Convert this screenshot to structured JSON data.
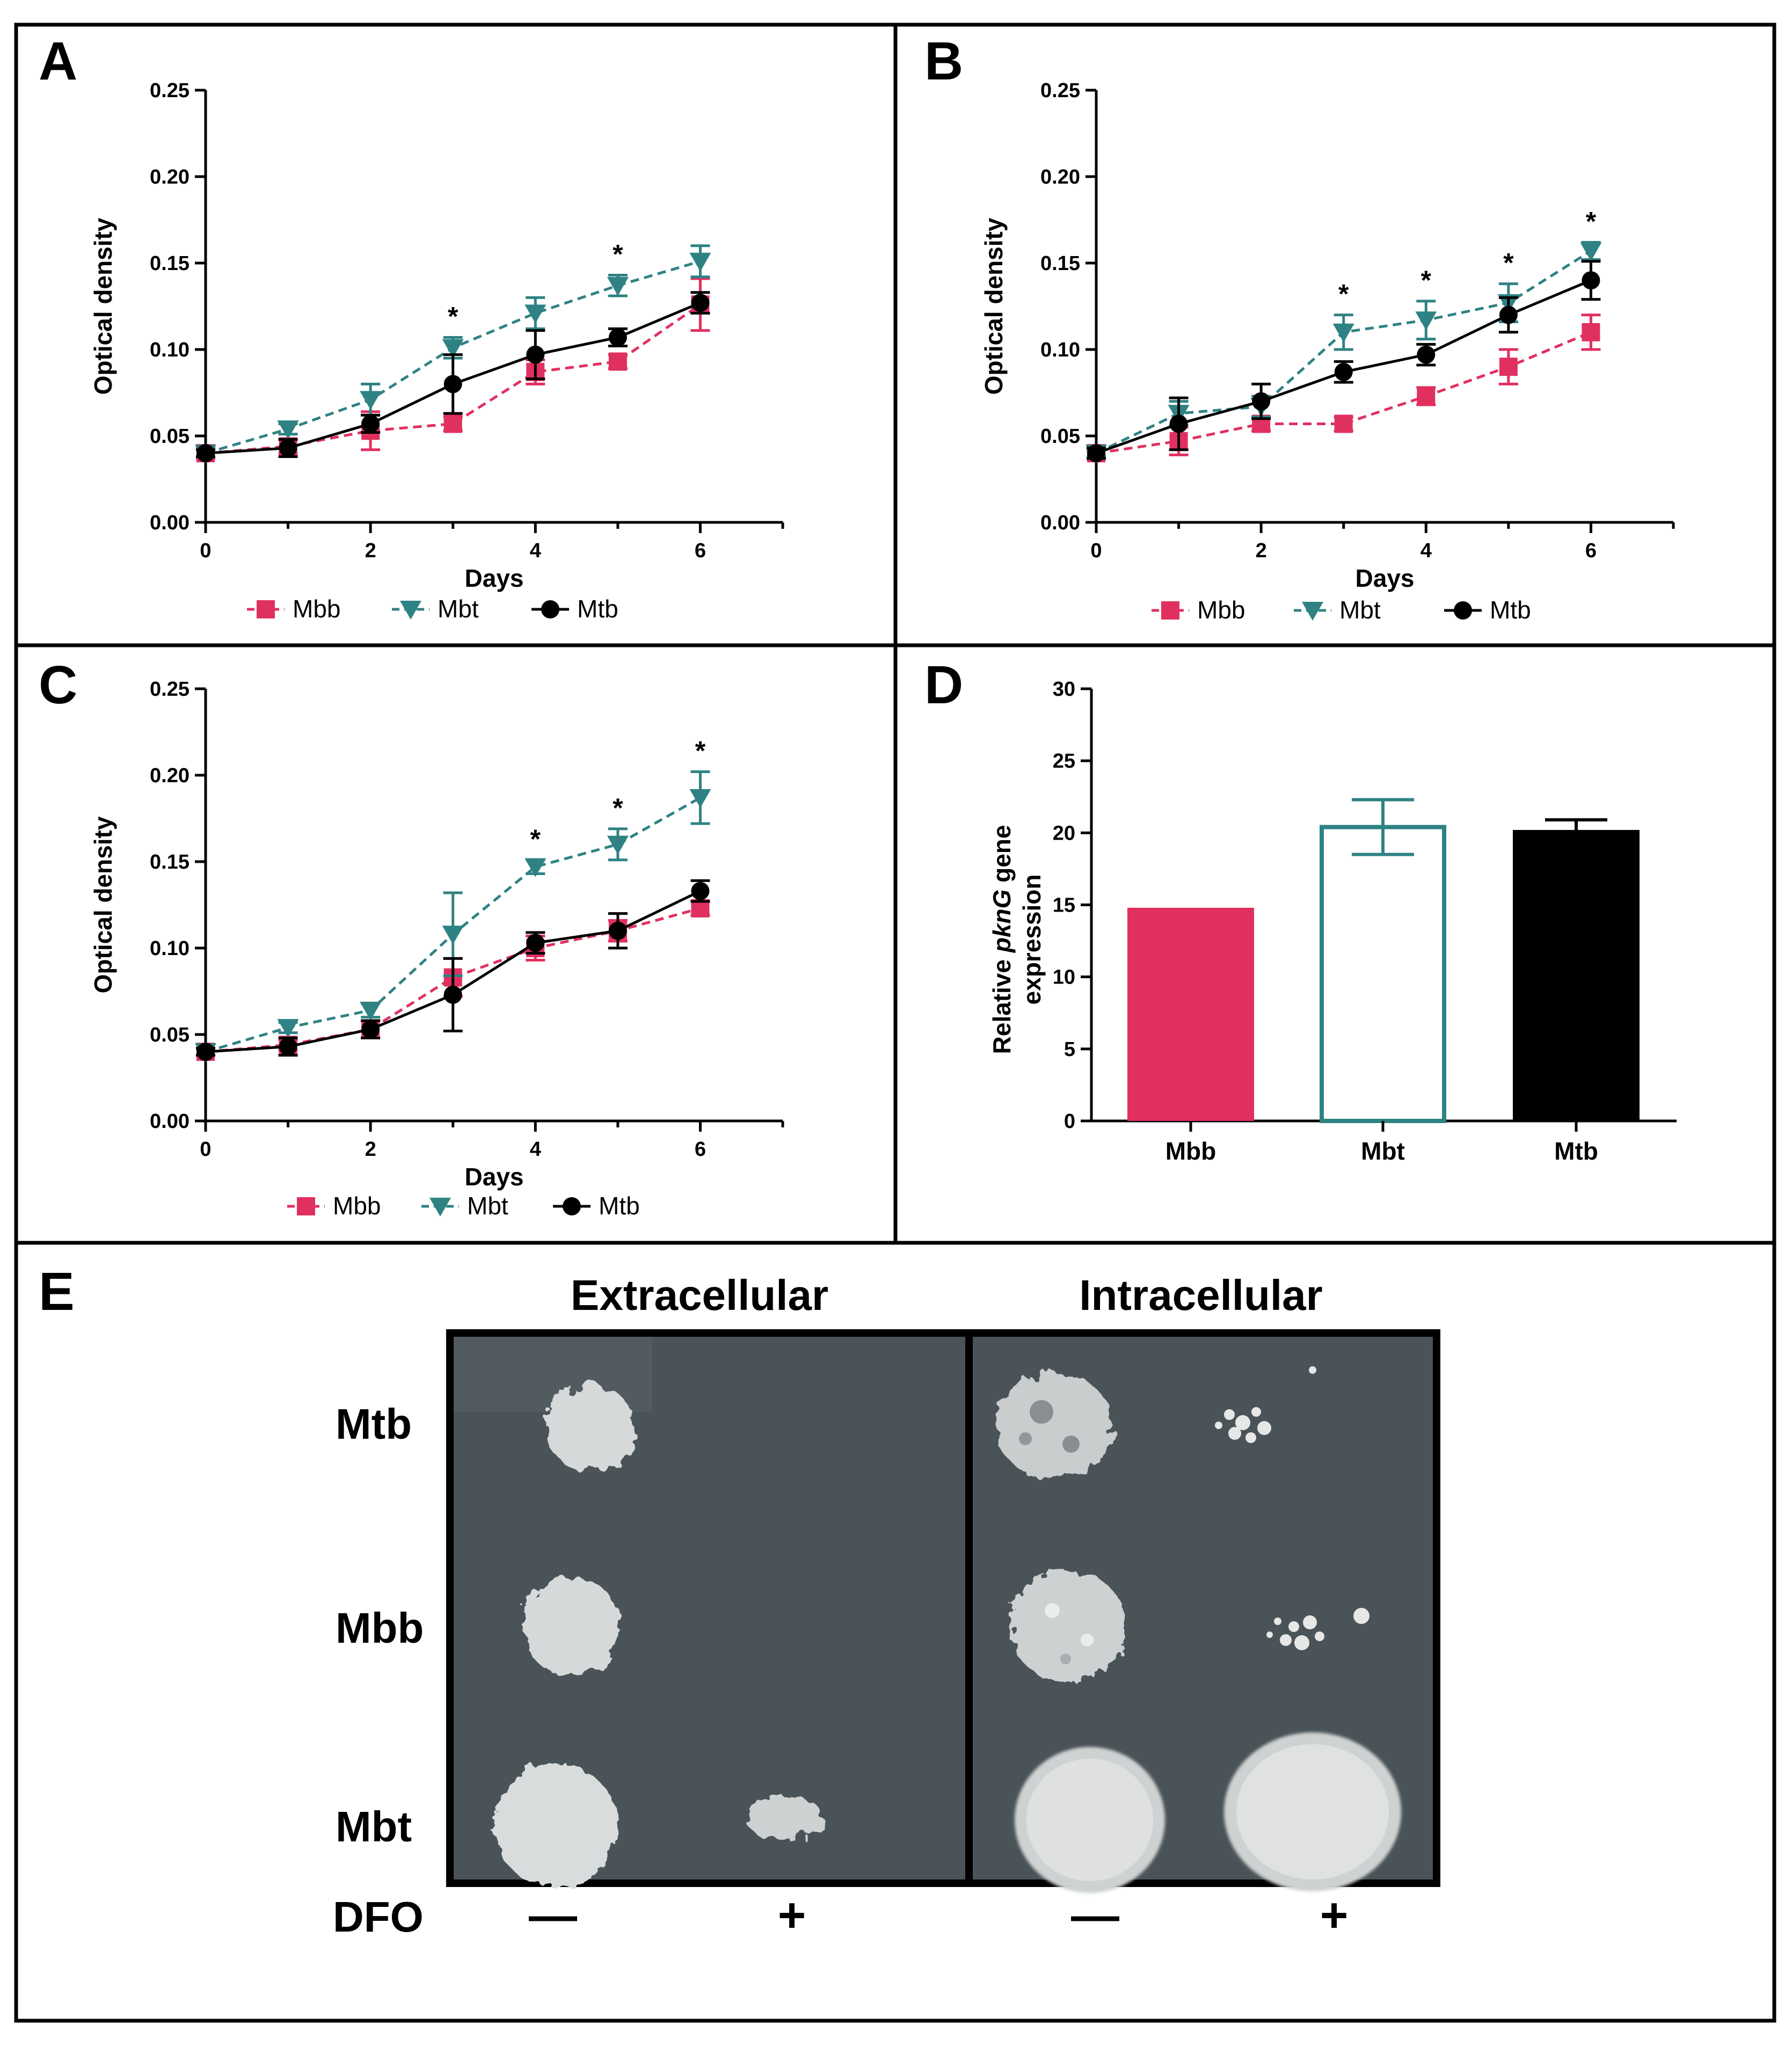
{
  "colors": {
    "Mbb": "#e0305f",
    "Mbt": "#2f8283",
    "Mtb": "#000000",
    "plate_bg": "#4a5358",
    "colony": "#d9dcdc"
  },
  "chart_data": [
    {
      "panel": "A",
      "type": "line",
      "xlabel": "Days",
      "ylabel": "Optical density",
      "xlim": [
        0,
        7
      ],
      "ylim": [
        0,
        0.25
      ],
      "xticks": [
        "0",
        "2",
        "4",
        "6"
      ],
      "yticks": [
        "0.00",
        "0.05",
        "0.10",
        "0.15",
        "0.20",
        "0.25"
      ],
      "x": [
        0,
        1,
        2,
        3,
        4,
        5,
        6
      ],
      "legend": "bottom",
      "series": [
        {
          "name": "Mbb",
          "marker": "square",
          "style": "dashed",
          "values": [
            0.04,
            0.044,
            0.053,
            0.057,
            0.087,
            0.093,
            0.126
          ],
          "errors": [
            0.003,
            0.004,
            0.011,
            0.004,
            0.007,
            0.004,
            0.015
          ]
        },
        {
          "name": "Mbt",
          "marker": "triangle-down",
          "style": "dashed",
          "values": [
            0.04,
            0.054,
            0.071,
            0.101,
            0.121,
            0.137,
            0.151
          ],
          "errors": [
            0.002,
            0.003,
            0.009,
            0.006,
            0.009,
            0.006,
            0.009
          ]
        },
        {
          "name": "Mtb",
          "marker": "circle",
          "style": "solid",
          "values": [
            0.04,
            0.043,
            0.057,
            0.08,
            0.097,
            0.107,
            0.127
          ],
          "errors": [
            0.002,
            0.005,
            0.005,
            0.017,
            0.014,
            0.005,
            0.006
          ]
        }
      ],
      "significance_x": [
        3,
        5
      ],
      "significance_label": "*"
    },
    {
      "panel": "B",
      "type": "line",
      "xlabel": "Days",
      "ylabel": "Optical density",
      "xlim": [
        0,
        7
      ],
      "ylim": [
        0,
        0.25
      ],
      "xticks": [
        "0",
        "2",
        "4",
        "6"
      ],
      "yticks": [
        "0.00",
        "0.05",
        "0.10",
        "0.15",
        "0.20",
        "0.25"
      ],
      "x": [
        0,
        1,
        2,
        3,
        4,
        5,
        6
      ],
      "legend": "bottom",
      "series": [
        {
          "name": "Mbb",
          "marker": "square",
          "style": "dashed",
          "values": [
            0.04,
            0.047,
            0.057,
            0.057,
            0.073,
            0.09,
            0.11
          ],
          "errors": [
            0.002,
            0.008,
            0.004,
            0.004,
            0.005,
            0.01,
            0.01
          ]
        },
        {
          "name": "Mbt",
          "marker": "triangle-down",
          "style": "dashed",
          "values": [
            0.04,
            0.063,
            0.067,
            0.11,
            0.117,
            0.127,
            0.157
          ],
          "errors": [
            0.002,
            0.007,
            0.006,
            0.01,
            0.011,
            0.011,
            0.005
          ]
        },
        {
          "name": "Mtb",
          "marker": "circle",
          "style": "solid",
          "values": [
            0.04,
            0.057,
            0.07,
            0.087,
            0.097,
            0.12,
            0.14
          ],
          "errors": [
            0.003,
            0.015,
            0.01,
            0.006,
            0.006,
            0.01,
            0.011
          ]
        }
      ],
      "significance_x": [
        3,
        4,
        5,
        6
      ],
      "significance_label": "*"
    },
    {
      "panel": "C",
      "type": "line",
      "xlabel": "Days",
      "ylabel": "Optical density",
      "xlim": [
        0,
        7
      ],
      "ylim": [
        0,
        0.25
      ],
      "xticks": [
        "0",
        "2",
        "4",
        "6"
      ],
      "yticks": [
        "0.00",
        "0.05",
        "0.10",
        "0.15",
        "0.20",
        "0.25"
      ],
      "x": [
        0,
        1,
        2,
        3,
        4,
        5,
        6
      ],
      "legend": "bottom",
      "series": [
        {
          "name": "Mbb",
          "marker": "square",
          "style": "dashed",
          "values": [
            0.04,
            0.044,
            0.053,
            0.083,
            0.1,
            0.11,
            0.123
          ],
          "errors": [
            0.002,
            0.003,
            0.005,
            0.011,
            0.007,
            0.006,
            0.004
          ]
        },
        {
          "name": "Mbt",
          "marker": "triangle-down",
          "style": "dashed",
          "values": [
            0.04,
            0.054,
            0.064,
            0.108,
            0.147,
            0.16,
            0.187
          ],
          "errors": [
            0.002,
            0.003,
            0.004,
            0.024,
            0.004,
            0.009,
            0.015
          ]
        },
        {
          "name": "Mtb",
          "marker": "circle",
          "style": "solid",
          "values": [
            0.04,
            0.043,
            0.053,
            0.073,
            0.103,
            0.11,
            0.133
          ],
          "errors": [
            0.002,
            0.005,
            0.005,
            0.021,
            0.006,
            0.01,
            0.006
          ]
        }
      ],
      "significance_x": [
        4,
        5,
        6
      ],
      "significance_label": "*"
    },
    {
      "panel": "D",
      "type": "bar",
      "categories": [
        "Mbb",
        "Mbt",
        "Mtb"
      ],
      "values": [
        14.8,
        20.4,
        20.2
      ],
      "errors": [
        0,
        1.9,
        0.7
      ],
      "styles": [
        "filled",
        "outline",
        "filled"
      ],
      "ylabel_line1": "Relative ",
      "ylabel_italic": "pknG",
      "ylabel_line1_end": " gene",
      "ylabel_line2": "expression",
      "ylim": [
        0,
        30
      ],
      "yticks": [
        "0",
        "5",
        "10",
        "15",
        "20",
        "25",
        "30"
      ]
    }
  ],
  "panel_letters": [
    "A",
    "B",
    "C",
    "D",
    "E"
  ],
  "plate": {
    "headers": [
      "Extracellular",
      "Intracellular"
    ],
    "rows": [
      "Mtb",
      "Mbb",
      "Mbt"
    ],
    "condition_label": "DFO",
    "conditions": [
      "—",
      "+",
      "—",
      "+"
    ]
  }
}
